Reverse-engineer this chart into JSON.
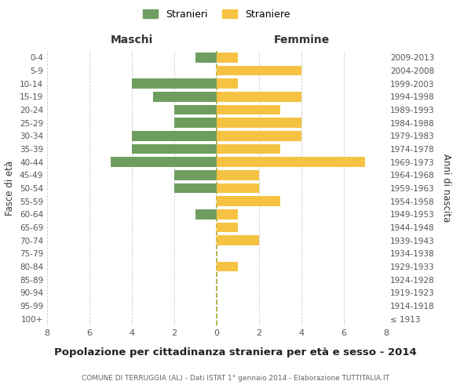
{
  "age_groups": [
    "100+",
    "95-99",
    "90-94",
    "85-89",
    "80-84",
    "75-79",
    "70-74",
    "65-69",
    "60-64",
    "55-59",
    "50-54",
    "45-49",
    "40-44",
    "35-39",
    "30-34",
    "25-29",
    "20-24",
    "15-19",
    "10-14",
    "5-9",
    "0-4"
  ],
  "birth_years": [
    "≤ 1913",
    "1914-1918",
    "1919-1923",
    "1924-1928",
    "1929-1933",
    "1934-1938",
    "1939-1943",
    "1944-1948",
    "1949-1953",
    "1954-1958",
    "1959-1963",
    "1964-1968",
    "1969-1973",
    "1974-1978",
    "1979-1983",
    "1984-1988",
    "1989-1993",
    "1994-1998",
    "1999-2003",
    "2004-2008",
    "2009-2013"
  ],
  "maschi": [
    0,
    0,
    0,
    0,
    0,
    0,
    0,
    0,
    1,
    0,
    2,
    2,
    5,
    4,
    4,
    2,
    2,
    3,
    4,
    0,
    1
  ],
  "femmine": [
    0,
    0,
    0,
    0,
    1,
    0,
    2,
    1,
    1,
    3,
    2,
    2,
    7,
    3,
    4,
    4,
    3,
    4,
    1,
    4,
    1
  ],
  "color_maschi": "#6e9e5f",
  "color_femmine": "#f5c242",
  "background_color": "#ffffff",
  "grid_color": "#cccccc",
  "title": "Popolazione per cittadinanza straniera per età e sesso - 2014",
  "subtitle": "COMUNE DI TERRUGGIA (AL) - Dati ISTAT 1° gennaio 2014 - Elaborazione TUTTITALIA.IT",
  "ylabel_left": "Fasce di età",
  "ylabel_right": "Anni di nascita",
  "xlabel_left": "Maschi",
  "xlabel_right": "Femmine",
  "legend_maschi": "Stranieri",
  "legend_femmine": "Straniere",
  "xlim": 8,
  "bar_height": 0.75
}
